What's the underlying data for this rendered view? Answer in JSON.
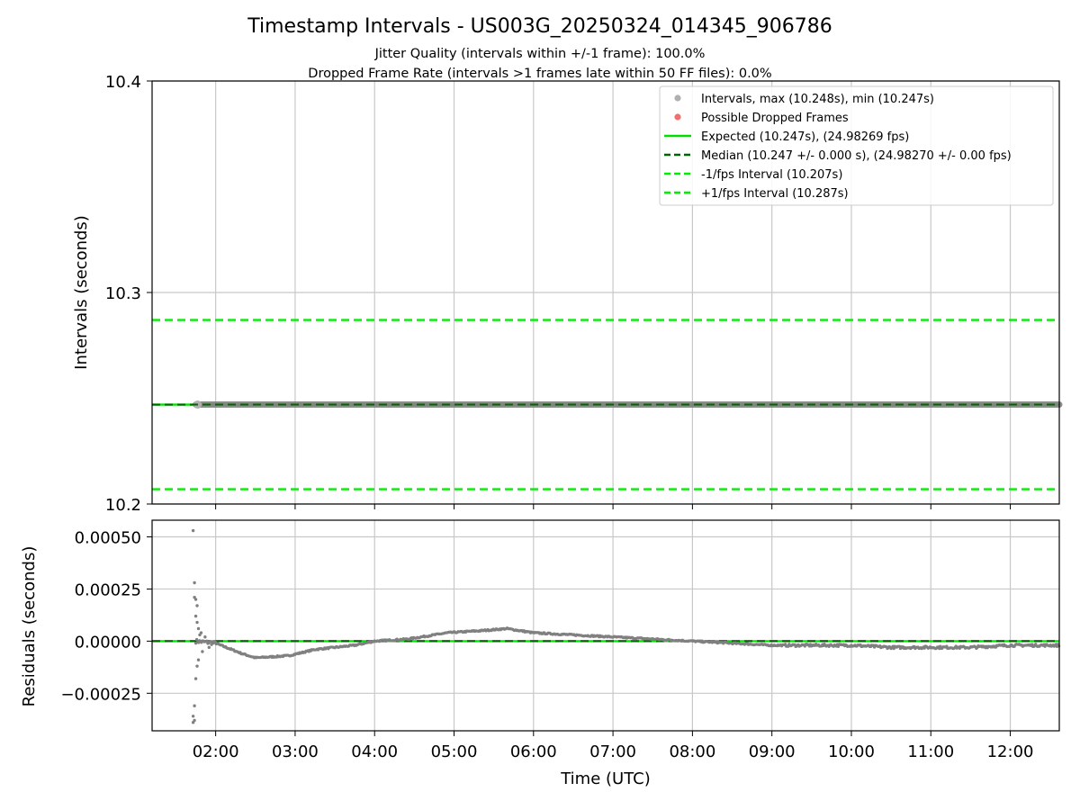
{
  "figure": {
    "title": "Timestamp Intervals - US003G_20250324_014345_906786",
    "subtitle_1": "Jitter Quality (intervals within +/-1 frame): 100.0%",
    "subtitle_2": "Dropped Frame Rate (intervals >1 frames late within 50 FF files): 0.0%"
  },
  "colors": {
    "intervals": "#808080",
    "intervals_legend": "#b0b0b0",
    "dropped": "#f07070",
    "expected": "#00e000",
    "median": "#006400",
    "fps_band": "#00ee00",
    "grid": "#c8c8c8"
  },
  "chart_data": [
    {
      "type": "scatter",
      "panel": "top",
      "xlabel": "",
      "ylabel": "Intervals (seconds)",
      "xlim": [
        "01:12",
        "12:37"
      ],
      "ylim": [
        10.2,
        10.4
      ],
      "yticks": [
        10.2,
        10.3,
        10.4
      ],
      "ytick_labels": [
        "10.2",
        "10.3",
        "10.4"
      ],
      "grid": true,
      "legend_placement": "top-right",
      "series": [
        {
          "name": "Intervals, max (10.248s), min (10.247s)",
          "kind": "points",
          "x_range": [
            "01:45",
            "12:37"
          ],
          "y": 10.247
        },
        {
          "name": "Possible Dropped Frames",
          "kind": "points",
          "values": []
        }
      ],
      "reference_lines": [
        {
          "name": "Expected (10.247s), (24.98269 fps)",
          "y": 10.247,
          "style": "solid"
        },
        {
          "name": "Median (10.247 +/- 0.000 s), (24.98270 +/- 0.00 fps)",
          "y": 10.247,
          "style": "dashed"
        },
        {
          "name": "-1/fps Interval (10.207s)",
          "y": 10.207,
          "style": "dashed"
        },
        {
          "name": "+1/fps Interval (10.287s)",
          "y": 10.287,
          "style": "dashed"
        }
      ]
    },
    {
      "type": "scatter",
      "panel": "bottom",
      "xlabel": "Time (UTC)",
      "ylabel": "Residuals (seconds)",
      "xlim": [
        "01:12",
        "12:37"
      ],
      "ylim": [
        -0.00043,
        0.00058
      ],
      "xticks": [
        "02:00",
        "03:00",
        "04:00",
        "05:00",
        "06:00",
        "07:00",
        "08:00",
        "09:00",
        "10:00",
        "11:00",
        "12:00"
      ],
      "yticks": [
        -0.00025,
        0.0,
        0.00025,
        0.0005
      ],
      "ytick_labels": [
        "−0.00025",
        "0.00000",
        "0.00025",
        "0.00050"
      ],
      "grid": true,
      "residual_trend": [
        [
          "01:45",
          0.0
        ],
        [
          "02:00",
          -1e-05
        ],
        [
          "02:20",
          -6e-05
        ],
        [
          "02:30",
          -8e-05
        ],
        [
          "02:55",
          -7e-05
        ],
        [
          "03:15",
          -4e-05
        ],
        [
          "03:45",
          -2e-05
        ],
        [
          "04:00",
          0.0
        ],
        [
          "04:25",
          1e-05
        ],
        [
          "04:55",
          4e-05
        ],
        [
          "05:20",
          5e-05
        ],
        [
          "05:40",
          6e-05
        ],
        [
          "06:00",
          4e-05
        ],
        [
          "06:30",
          3e-05
        ],
        [
          "07:00",
          2e-05
        ],
        [
          "07:30",
          1e-05
        ],
        [
          "08:00",
          0.0
        ],
        [
          "08:30",
          -1e-05
        ],
        [
          "09:00",
          -2e-05
        ],
        [
          "09:30",
          -2e-05
        ],
        [
          "10:00",
          -2e-05
        ],
        [
          "10:30",
          -3e-05
        ],
        [
          "11:00",
          -3e-05
        ],
        [
          "11:30",
          -3e-05
        ],
        [
          "12:00",
          -2e-05
        ],
        [
          "12:37",
          -2e-05
        ]
      ],
      "startup_outliers": [
        [
          "01:43",
          0.00053
        ],
        [
          "01:44",
          0.00028
        ],
        [
          "01:44",
          0.00021
        ],
        [
          "01:45",
          0.0002
        ],
        [
          "01:46",
          0.00017
        ],
        [
          "01:45",
          0.00012
        ],
        [
          "01:46",
          9e-05
        ],
        [
          "01:47",
          6e-05
        ],
        [
          "01:44",
          -0.00031
        ],
        [
          "01:43",
          -0.00036
        ],
        [
          "01:43",
          -0.00039
        ],
        [
          "01:44",
          -0.00038
        ],
        [
          "01:45",
          -0.00018
        ],
        [
          "01:46",
          -0.00012
        ],
        [
          "01:47",
          -9e-05
        ],
        [
          "01:48",
          3e-05
        ],
        [
          "01:49",
          4e-05
        ],
        [
          "01:50",
          -5e-05
        ],
        [
          "01:52",
          2e-05
        ],
        [
          "01:55",
          -3e-05
        ]
      ],
      "reference_lines": [
        {
          "y": 0.0,
          "style": "solid"
        },
        {
          "y": 0.0,
          "style": "dashed"
        }
      ]
    }
  ]
}
